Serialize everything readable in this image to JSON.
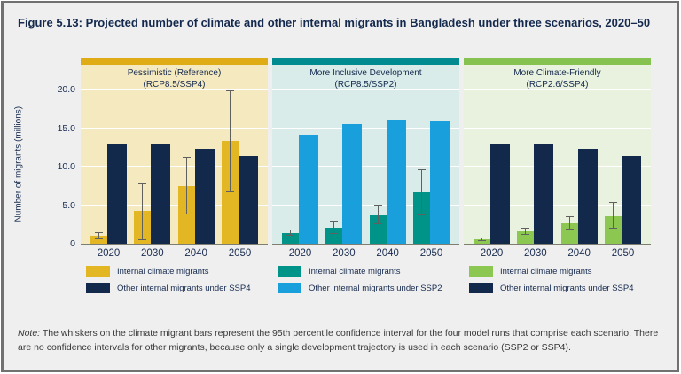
{
  "figure": {
    "title": "Figure 5.13: Projected number of climate and other internal migrants in Bangladesh under three scenarios, 2020–50"
  },
  "note": {
    "label": "Note:",
    "text": " The whiskers on the climate migrant bars represent the 95th percentile confidence interval for the four model runs that comprise each scenario. There are no confidence intervals for other migrants, because only a single development trajectory is used in each scenario (SSP2 or SSP4)."
  },
  "chart_data": {
    "type": "bar",
    "categories": [
      "2020",
      "2030",
      "2040",
      "2050"
    ],
    "ylabel": "Number of migrants (millions)",
    "ylim": [
      0,
      20
    ],
    "ytick_labels": [
      "0",
      "5.0",
      "10.0",
      "15.0",
      "20.0"
    ],
    "ytick_values": [
      0,
      5,
      10,
      15,
      20
    ],
    "grid": "white horizontal gridlines at 5, 10, 15, 20",
    "legend_position": "below each panel",
    "panels": [
      {
        "title": "Pessimistic (Reference)",
        "subtitle": "(RCP8.5/SSP4)",
        "colors": {
          "accent": "#DFAC15",
          "background": "#F5E9C0",
          "climate": "#E3B623",
          "other": "#13294B"
        },
        "series": [
          {
            "name": "Internal climate migrants",
            "values": [
              1.0,
              4.2,
              7.5,
              13.3
            ],
            "ci95": [
              [
                0.6,
                1.5
              ],
              [
                0.5,
                7.8
              ],
              [
                3.8,
                11.3
              ],
              [
                6.7,
                19.9
              ]
            ]
          },
          {
            "name": "Other internal migrants under SSP4",
            "values": [
              13.0,
              13.0,
              12.3,
              11.4
            ]
          }
        ]
      },
      {
        "title": "More Inclusive Development",
        "subtitle": "(RCP8.5/SSP2)",
        "colors": {
          "accent": "#008B90",
          "background": "#D9ECE9",
          "climate": "#009387",
          "other": "#189FDC"
        },
        "series": [
          {
            "name": "Internal climate migrants",
            "values": [
              1.4,
              2.1,
              3.7,
              6.7
            ],
            "ci95": [
              [
                1.0,
                1.8
              ],
              [
                1.3,
                3.0
              ],
              [
                2.5,
                5.1
              ],
              [
                3.7,
                9.6
              ]
            ]
          },
          {
            "name": "Other internal migrants under SSP2",
            "values": [
              14.1,
              15.5,
              16.1,
              15.9
            ]
          }
        ]
      },
      {
        "title": "More Climate-Friendly",
        "subtitle": "(RCP2.6/SSP4)",
        "colors": {
          "accent": "#85C250",
          "background": "#E9F2DF",
          "climate": "#8CC751",
          "other": "#13294B"
        },
        "series": [
          {
            "name": "Internal climate migrants",
            "values": [
              0.6,
              1.6,
              2.7,
              3.6
            ],
            "ci95": [
              [
                0.4,
                0.8
              ],
              [
                1.1,
                2.1
              ],
              [
                1.8,
                3.6
              ],
              [
                1.9,
                5.4
              ]
            ]
          },
          {
            "name": "Other internal migrants under SSP4",
            "values": [
              13.0,
              13.0,
              12.3,
              11.4
            ]
          }
        ]
      }
    ]
  }
}
